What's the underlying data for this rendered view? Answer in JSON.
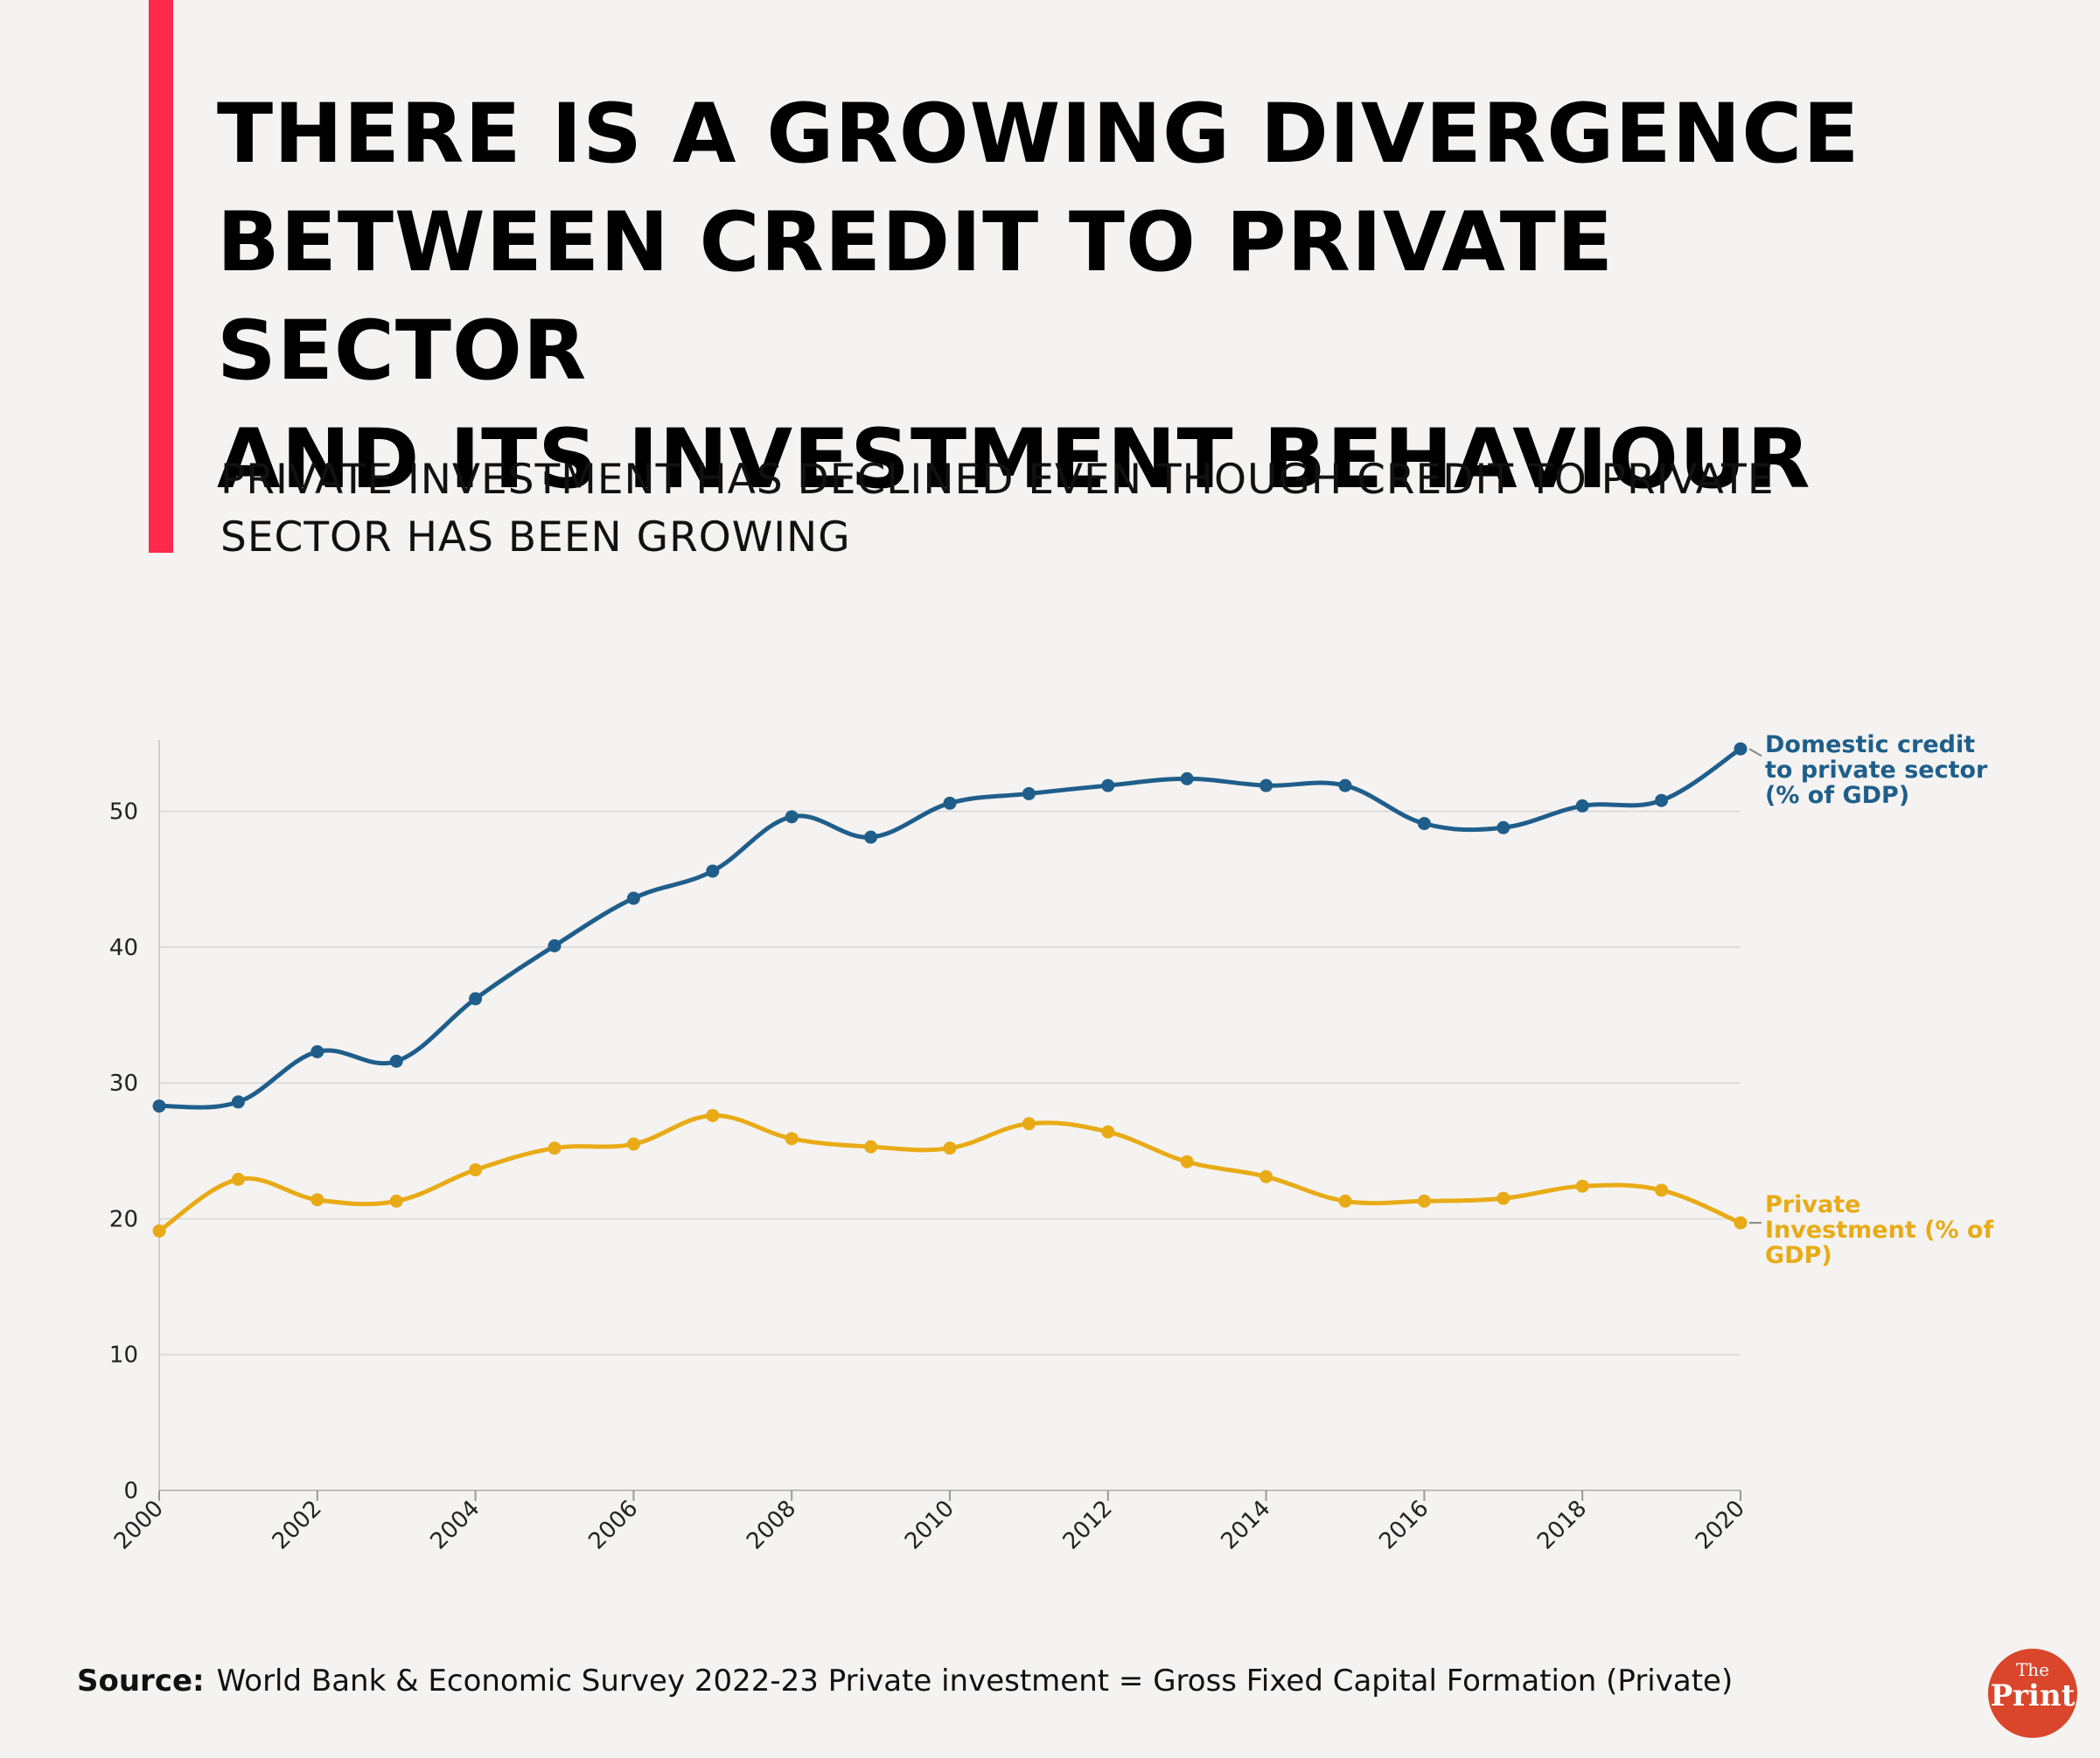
{
  "header": {
    "title_lines": [
      "THERE IS A GROWING DIVERGENCE",
      "BETWEEN CREDIT TO PRIVATE SECTOR",
      "AND ITS INVESTMENT BEHAVIOUR"
    ],
    "subtitle_lines": [
      "PRIVATE INVESTMENT HAS DECLINED EVEN THOUGH CREDIT TO PRIVATE",
      "SECTOR HAS BEEN GROWING"
    ]
  },
  "colors": {
    "accent": "#ff2a4b",
    "credit": "#1f5e8a",
    "investment": "#e8ab17",
    "grid": "#dcdcdc",
    "logo": "#d9462b"
  },
  "chart_data": {
    "type": "line",
    "title": "",
    "xlabel": "",
    "ylabel": "",
    "x": [
      2000,
      2001,
      2002,
      2003,
      2004,
      2005,
      2006,
      2007,
      2008,
      2009,
      2010,
      2011,
      2012,
      2013,
      2014,
      2015,
      2016,
      2017,
      2018,
      2019,
      2020
    ],
    "xticks": [
      "2000",
      "2002",
      "2004",
      "2006",
      "2008",
      "2010",
      "2012",
      "2014",
      "2016",
      "2018",
      "2020"
    ],
    "xlim": [
      2000,
      2020
    ],
    "yticks": [
      "0",
      "10",
      "20",
      "30",
      "40",
      "50"
    ],
    "ylim": [
      0,
      55
    ],
    "grid": true,
    "series": [
      {
        "name_lines": [
          "Domestic credit",
          "to private sector",
          "(% of GDP)"
        ],
        "color": "#1f5e8a",
        "values": [
          28.3,
          28.6,
          32.3,
          31.6,
          36.2,
          40.1,
          43.6,
          45.6,
          49.6,
          48.1,
          50.6,
          51.3,
          51.9,
          52.4,
          51.9,
          51.9,
          49.1,
          48.8,
          50.4,
          50.8,
          54.6
        ]
      },
      {
        "name_lines": [
          "Private",
          "Investment (% of",
          "GDP)"
        ],
        "color": "#e8ab17",
        "values": [
          19.1,
          22.9,
          21.4,
          21.3,
          23.6,
          25.2,
          25.5,
          27.6,
          25.9,
          25.3,
          25.2,
          27.0,
          26.4,
          24.2,
          23.1,
          21.3,
          21.3,
          21.5,
          22.4,
          22.1,
          19.7
        ]
      }
    ]
  },
  "footer": {
    "source_label": "Source:",
    "source_text": "World Bank & Economic Survey 2022-23 Private investment = Gross Fixed Capital Formation (Private)",
    "logo_small": "The",
    "logo_big": "Print"
  }
}
